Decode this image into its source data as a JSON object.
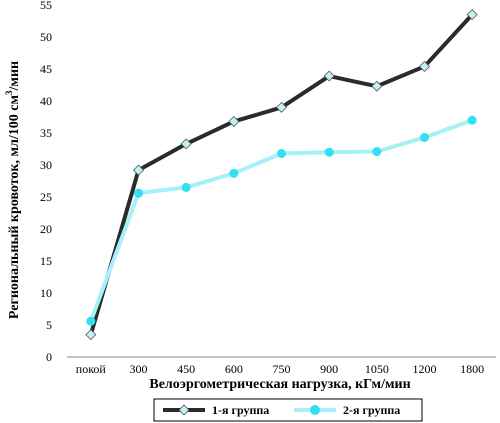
{
  "chart_data": {
    "type": "line",
    "xlabel": "Велоэргометрическая нагрузка, кГм/мин",
    "ylabel_main": "Региональный кровоток, мл/100 см",
    "ylabel_sup": "3",
    "ylabel_tail": "/мин",
    "ylim": [
      0,
      55
    ],
    "yticks": [
      0,
      5,
      10,
      15,
      20,
      25,
      30,
      35,
      40,
      45,
      50,
      55
    ],
    "grid": false,
    "legend_position": "bottom",
    "categories": [
      "покой",
      "300",
      "450",
      "600",
      "750",
      "900",
      "1050",
      "1200",
      "1800"
    ],
    "series": [
      {
        "name": "1-я группа",
        "color": "#2b2b2b",
        "marker_color": "#bff2f5",
        "marker": "diamond",
        "values": [
          3.5,
          29.2,
          33.3,
          36.8,
          39.0,
          43.9,
          42.3,
          45.4,
          53.5
        ]
      },
      {
        "name": "2-я группа",
        "color": "#a6f0f7",
        "marker_color": "#33dff0",
        "marker": "circle",
        "values": [
          5.6,
          25.6,
          26.5,
          28.7,
          31.8,
          32.0,
          32.1,
          34.3,
          37.0
        ]
      }
    ]
  }
}
